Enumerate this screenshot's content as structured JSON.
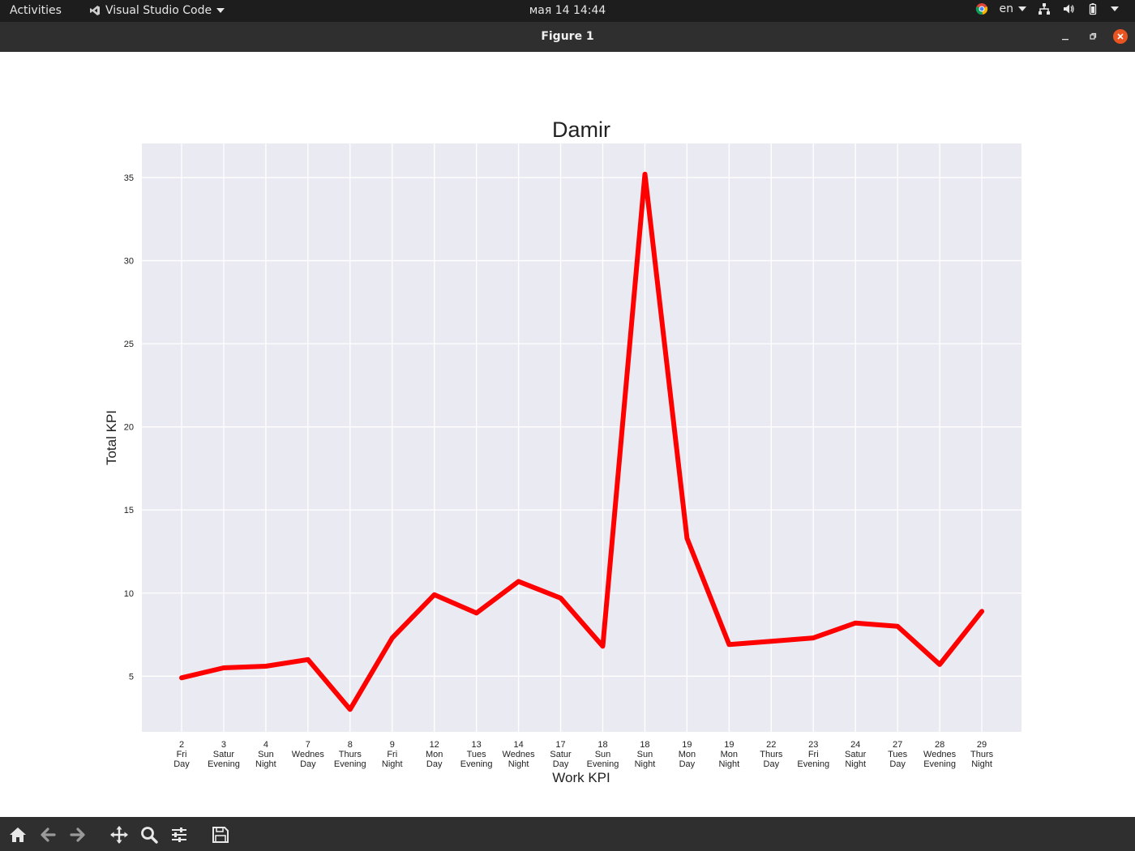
{
  "topbar": {
    "activities": "Activities",
    "app_name": "Visual Studio Code",
    "clock": "мая 14  14:44",
    "lang": "en"
  },
  "window": {
    "title": "Figure 1"
  },
  "chart_data": {
    "type": "line",
    "title": "Damir",
    "xlabel": "Work KPI",
    "ylabel": "Total KPI",
    "categories": [
      [
        "2",
        "Fri",
        "Day"
      ],
      [
        "3",
        "Satur",
        "Evening"
      ],
      [
        "4",
        "Sun",
        "Night"
      ],
      [
        "7",
        "Wednes",
        "Day"
      ],
      [
        "8",
        "Thurs",
        "Evening"
      ],
      [
        "9",
        "Fri",
        "Night"
      ],
      [
        "12",
        "Mon",
        "Day"
      ],
      [
        "13",
        "Tues",
        "Evening"
      ],
      [
        "14",
        "Wednes",
        "Night"
      ],
      [
        "17",
        "Satur",
        "Day"
      ],
      [
        "18",
        "Sun",
        "Evening"
      ],
      [
        "18",
        "Sun",
        "Night"
      ],
      [
        "19",
        "Mon",
        "Day"
      ],
      [
        "19",
        "Mon",
        "Night"
      ],
      [
        "22",
        "Thurs",
        "Day"
      ],
      [
        "23",
        "Fri",
        "Evening"
      ],
      [
        "24",
        "Satur",
        "Night"
      ],
      [
        "27",
        "Tues",
        "Day"
      ],
      [
        "28",
        "Wednes",
        "Evening"
      ],
      [
        "29",
        "Thurs",
        "Night"
      ]
    ],
    "values": [
      4.9,
      5.5,
      5.6,
      6.0,
      3.0,
      7.3,
      9.9,
      8.8,
      10.7,
      9.7,
      6.8,
      35.2,
      13.3,
      6.9,
      7.1,
      7.3,
      8.2,
      8.0,
      5.7,
      8.9
    ],
    "yticks": [
      5,
      10,
      15,
      20,
      25,
      30,
      35
    ],
    "ylim": [
      1.65,
      37.05
    ],
    "grid": true,
    "line_color": "#ff0000",
    "plot_bg": "#eaeaf2",
    "grid_color": "#ffffff"
  }
}
